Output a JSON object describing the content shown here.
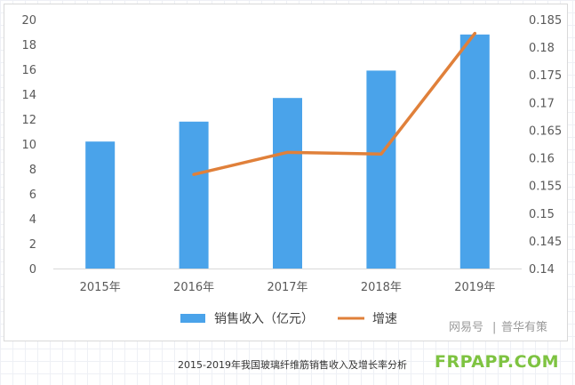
{
  "chart_data": {
    "type": "bar",
    "categories": [
      "2015年",
      "2016年",
      "2017年",
      "2018年",
      "2019年"
    ],
    "series": [
      {
        "name": "销售收入（亿元）",
        "chart": "bar",
        "axis": "left",
        "color": "#4aa3ea",
        "values": [
          10.2,
          11.8,
          13.7,
          15.9,
          18.8
        ]
      },
      {
        "name": "增速",
        "chart": "line",
        "axis": "right",
        "color": "#e0803a",
        "values": [
          null,
          0.157,
          0.161,
          0.1607,
          0.1825
        ]
      }
    ],
    "y_left": {
      "ylim": [
        0,
        20
      ],
      "ticks": [
        "0",
        "2",
        "4",
        "6",
        "8",
        "10",
        "12",
        "14",
        "16",
        "18",
        "20"
      ]
    },
    "y_right": {
      "ylim": [
        0.14,
        0.185
      ],
      "ticks": [
        "0.14",
        "0.145",
        "0.15",
        "0.155",
        "0.16",
        "0.165",
        "0.17",
        "0.175",
        "0.18",
        "0.185"
      ]
    },
    "grid": false,
    "legend_position": "bottom"
  },
  "watermark": {
    "brand": "网易号",
    "separator": "|",
    "account": "普华有策"
  },
  "caption": "2015-2019年我国玻璃纤维筋销售收入及增长率分析",
  "site_logo": "FRPAPP.COM"
}
